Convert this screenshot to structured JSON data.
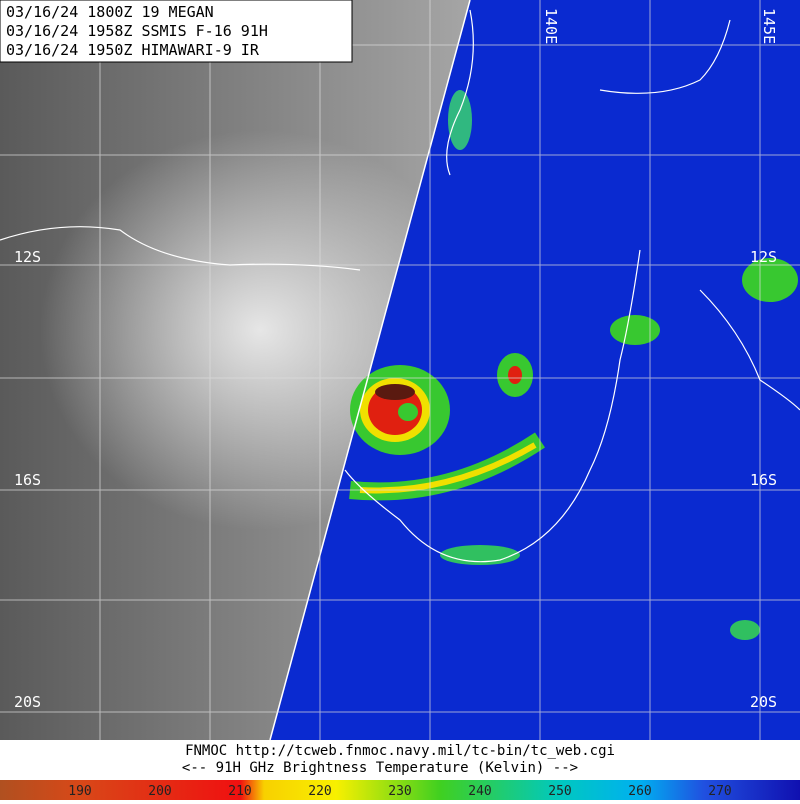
{
  "header": {
    "lines": [
      "03/16/24 1800Z  19 MEGAN",
      "03/16/24 1958Z  SSMIS F-16 91H",
      "03/16/24 1950Z  HIMAWARI-9 IR"
    ]
  },
  "map": {
    "latitude_labels": [
      "12S",
      "16S",
      "20S"
    ],
    "longitude_labels": [
      "140E",
      "145E"
    ]
  },
  "footer": {
    "source": "FNMOC  http://tcweb.fnmoc.navy.mil/tc-bin/tc_web.cgi",
    "caption": "<--  91H GHz Brightness Temperature (Kelvin)  -->"
  },
  "colorbar": {
    "labels": [
      "190",
      "200",
      "210",
      "220",
      "230",
      "240",
      "250",
      "260",
      "270"
    ]
  }
}
